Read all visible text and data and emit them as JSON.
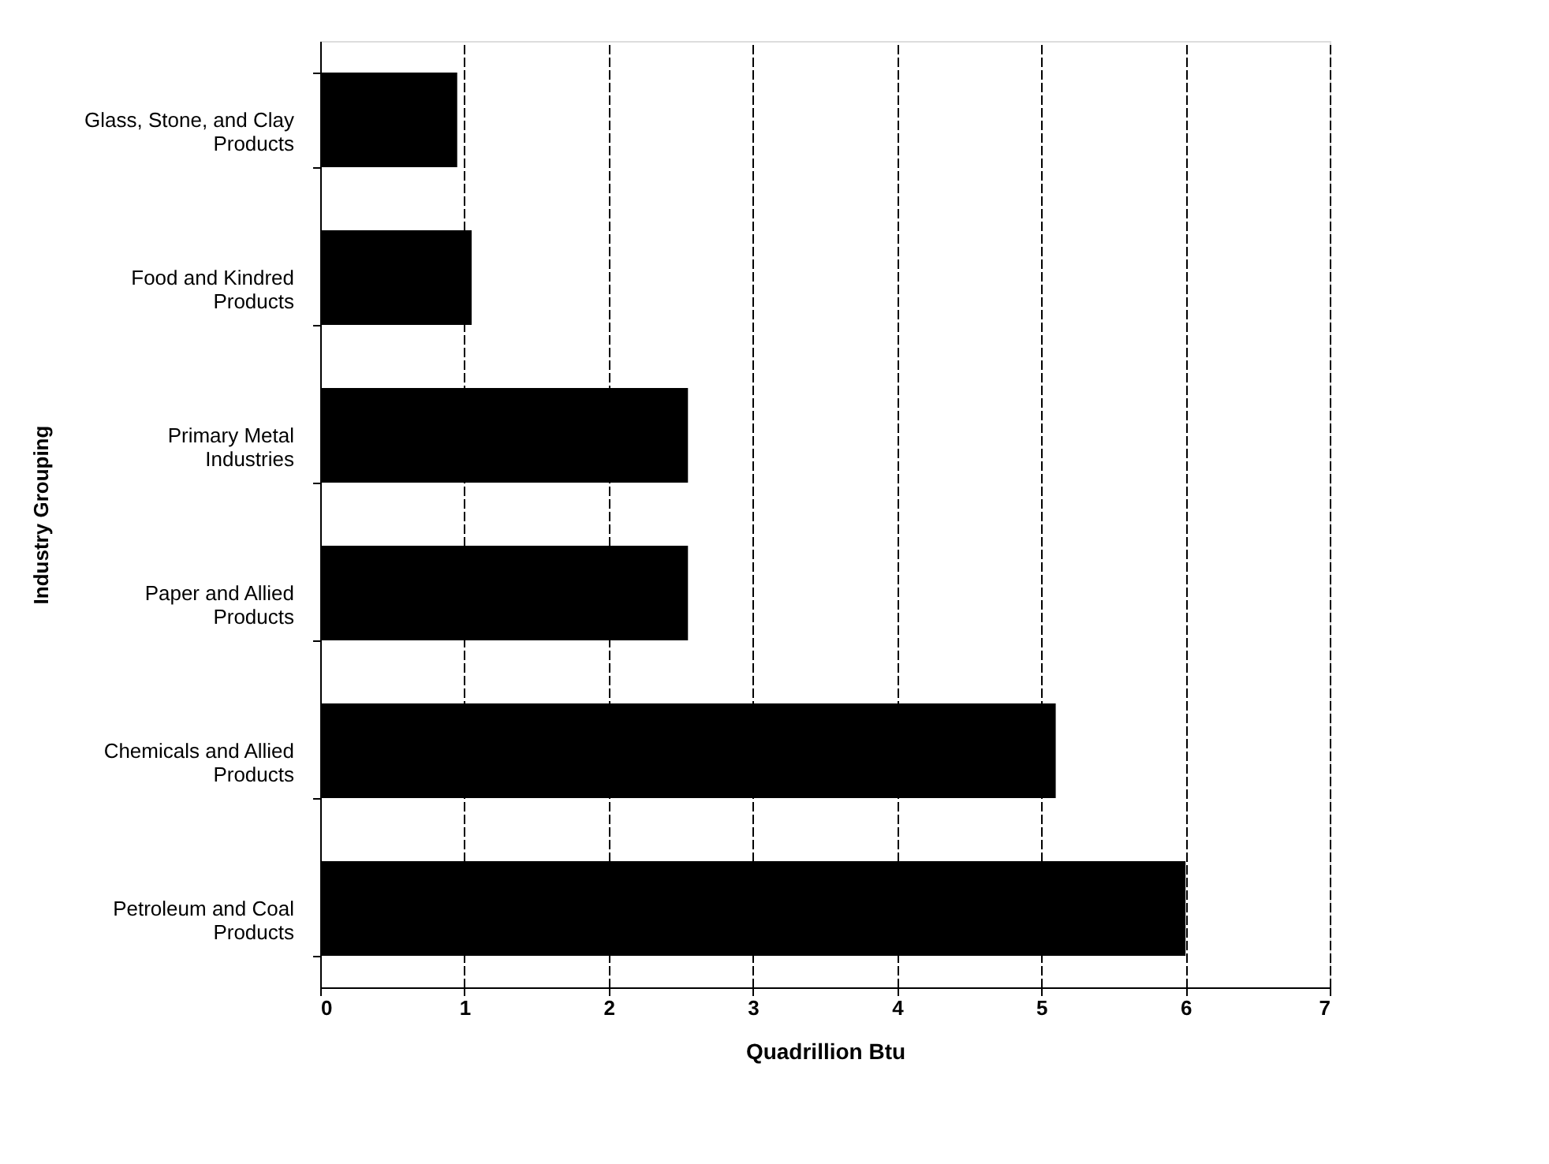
{
  "chart_data": {
    "type": "bar",
    "orientation": "horizontal",
    "categories": [
      "Glass, Stone, and Clay Products",
      "Food and Kindred Products",
      "Primary Metal Industries",
      "Paper and Allied Products",
      "Chemicals and Allied Products",
      "Petroleum and Coal Products"
    ],
    "values": [
      0.95,
      1.05,
      2.55,
      2.55,
      5.1,
      6.0
    ],
    "color": "#000000",
    "xlim": [
      0,
      7
    ],
    "xticks": [
      0,
      1,
      2,
      3,
      4,
      5,
      6,
      7
    ],
    "xlabel": "Quadrillion Btu",
    "ylabel": "Industry Grouping",
    "grid": "x"
  }
}
